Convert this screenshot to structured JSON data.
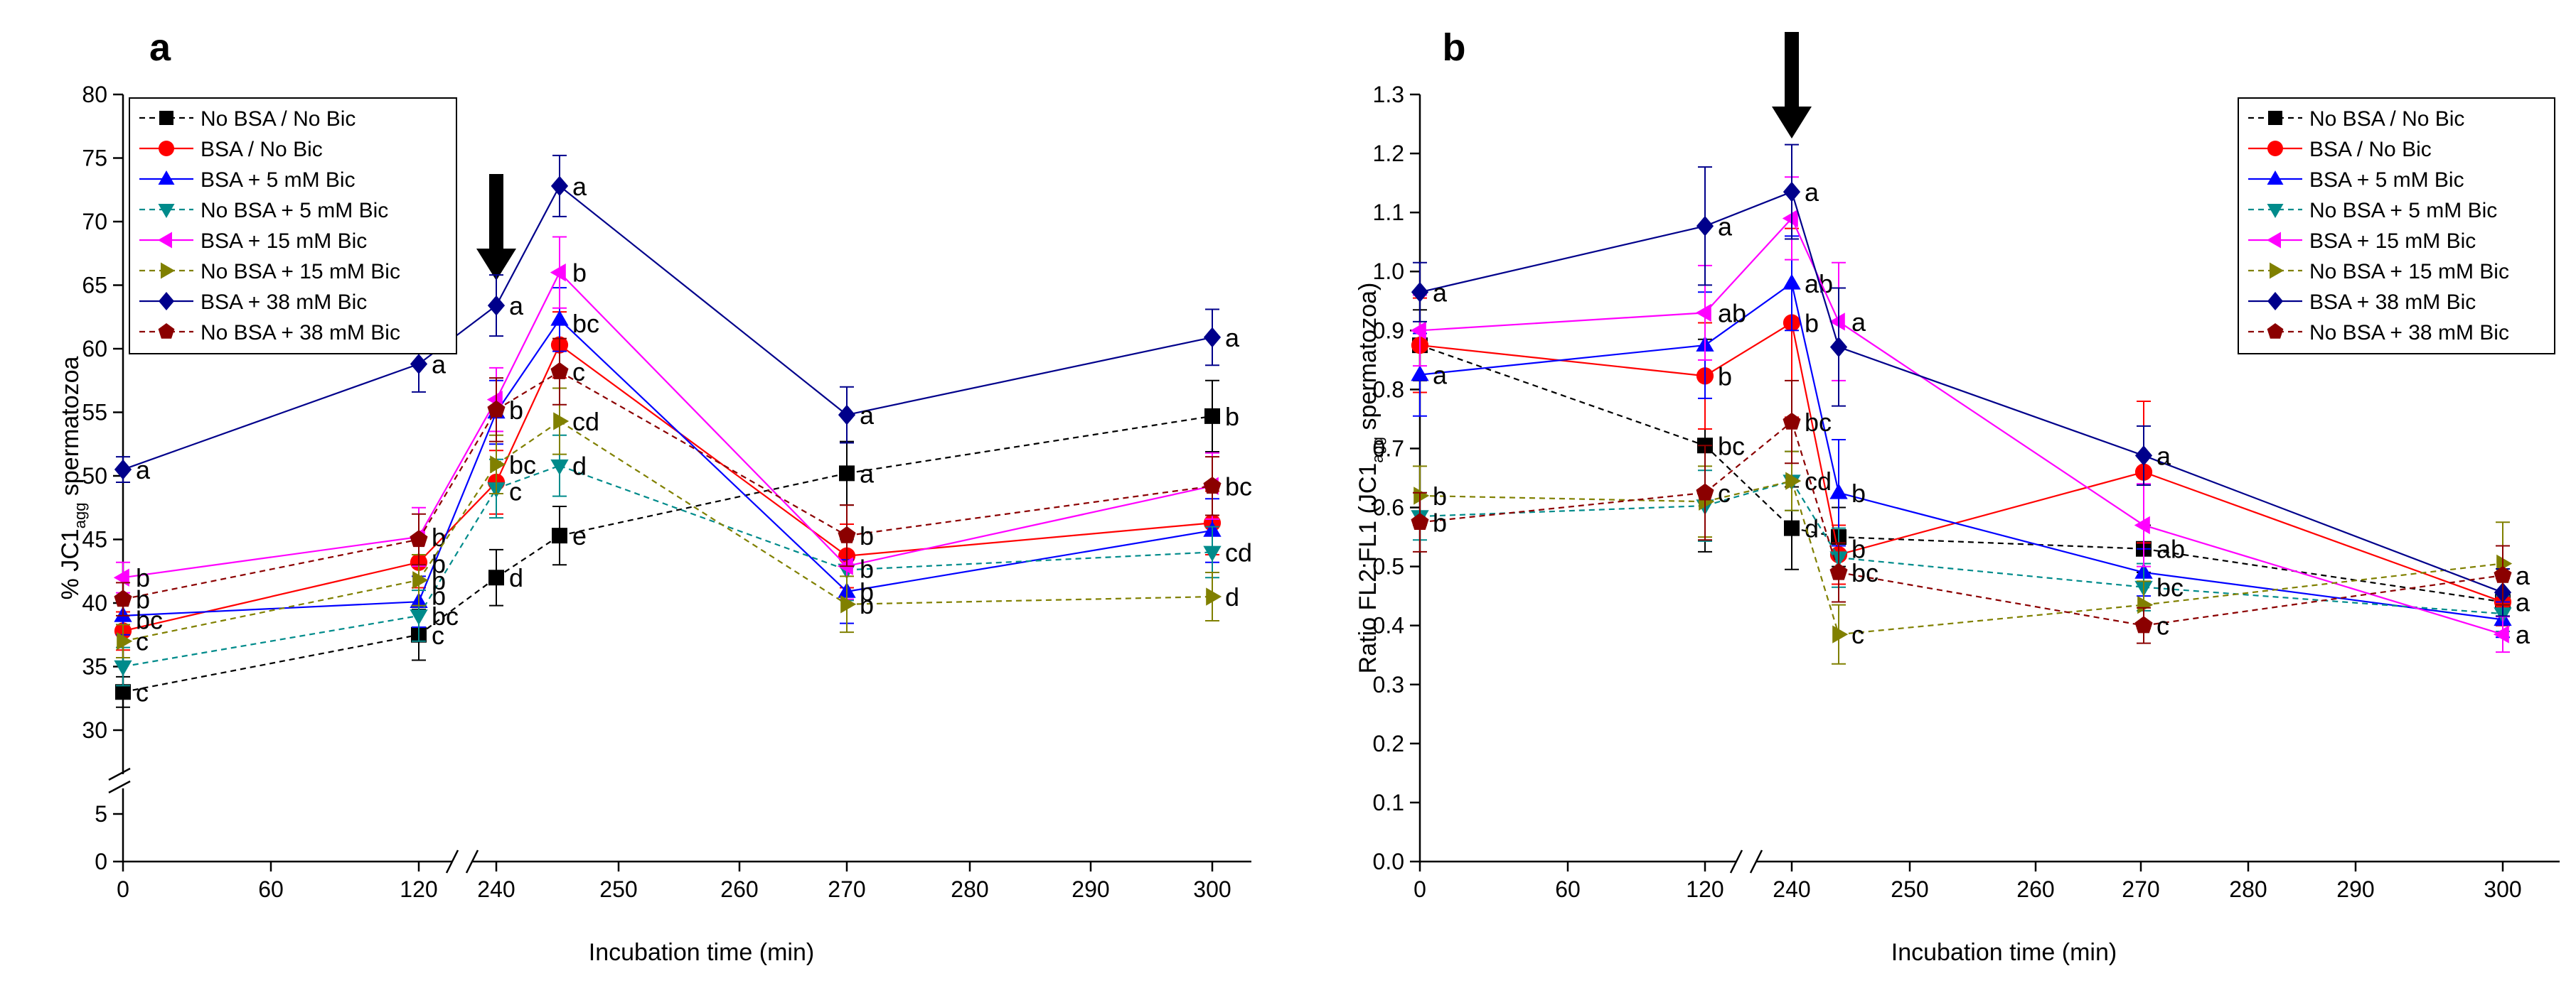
{
  "chart_data": [
    {
      "type": "line",
      "panel_label": "a",
      "xlabel": "Incubation time (min)",
      "ylabel_prefix": "% JC1",
      "ylabel_sub": "agg",
      "ylabel_suffix": " spermatozoa",
      "x_ticks": [
        "0",
        "60",
        "120",
        "240",
        "250",
        "260",
        "270",
        "280",
        "290",
        "300"
      ],
      "y_ticks": [
        "0",
        "5",
        "30",
        "35",
        "40",
        "45",
        "50",
        "55",
        "60",
        "65",
        "70",
        "75",
        "80"
      ],
      "x": [
        0,
        120,
        240,
        247,
        270,
        300
      ],
      "arrow_at": 240,
      "series": [
        {
          "name": "No BSA / No Bic",
          "color": "#000000",
          "marker": "square",
          "dash": true,
          "values": [
            33.0,
            37.5,
            42.0,
            45.3,
            50.2,
            54.7
          ],
          "errors": [
            1.2,
            2.0,
            2.2,
            2.3,
            2.5,
            2.8
          ],
          "letters": [
            "c",
            "c",
            "d",
            "e",
            "a",
            "b"
          ]
        },
        {
          "name": "BSA / No Bic",
          "color": "#ff0000",
          "marker": "circle",
          "dash": false,
          "values": [
            37.8,
            43.2,
            49.5,
            60.3,
            43.7,
            46.3
          ],
          "errors": [
            1.5,
            2.0,
            2.5,
            2.6,
            2.5,
            2.5
          ],
          "letters": [
            "",
            "",
            "",
            "",
            "",
            ""
          ]
        },
        {
          "name": "BSA + 5 mM Bic",
          "color": "#0000ff",
          "marker": "triangle-up",
          "dash": false,
          "values": [
            39.0,
            40.1,
            55.0,
            62.3,
            40.9,
            45.7
          ],
          "errors": [
            1.5,
            2.0,
            2.5,
            2.5,
            2.5,
            2.5
          ],
          "letters": [
            "",
            "",
            "",
            "",
            "b",
            ""
          ]
        },
        {
          "name": "No BSA + 5 mM Bic",
          "color": "#008b8b",
          "marker": "triangle-down",
          "dash": true,
          "values": [
            35.0,
            39.0,
            49.0,
            50.8,
            42.6,
            44.0
          ],
          "errors": [
            1.5,
            2.0,
            2.3,
            2.4,
            2.4,
            2.0
          ],
          "letters": [
            "",
            "",
            "",
            "d",
            "",
            "cd"
          ]
        },
        {
          "name": "BSA + 15 mM Bic",
          "color": "#ff00ff",
          "marker": "triangle-left",
          "dash": false,
          "values": [
            42.0,
            45.2,
            56.0,
            66.0,
            42.9,
            49.2
          ],
          "errors": [
            1.2,
            2.3,
            2.5,
            2.8,
            2.6,
            2.6
          ],
          "letters": [
            "b",
            "b",
            "",
            "b",
            "",
            ""
          ]
        },
        {
          "name": "No BSA + 15 mM Bic",
          "color": "#808000",
          "marker": "triangle-right",
          "dash": true,
          "values": [
            37.0,
            41.8,
            50.9,
            54.3,
            39.9,
            40.5
          ],
          "errors": [
            1.3,
            2.0,
            2.3,
            2.6,
            2.2,
            1.9
          ],
          "letters": [
            "c",
            "b",
            "bc",
            "cd",
            "b",
            "d"
          ]
        },
        {
          "name": "BSA + 38 mM Bic",
          "color": "#00008b",
          "marker": "diamond",
          "dash": false,
          "values": [
            50.5,
            58.8,
            63.4,
            72.8,
            54.8,
            60.9
          ],
          "errors": [
            1.0,
            2.2,
            2.4,
            2.4,
            2.2,
            2.2
          ],
          "letters": [
            "a",
            "a",
            "a",
            "a",
            "a",
            "a"
          ]
        },
        {
          "name": "No BSA  + 38 mM Bic",
          "color": "#8b0000",
          "marker": "pentagon",
          "dash": true,
          "values": [
            40.3,
            45.0,
            55.2,
            58.2,
            45.3,
            49.2
          ],
          "errors": [
            1.3,
            2.0,
            2.5,
            2.6,
            2.4,
            2.3
          ],
          "letters": [
            "b",
            "",
            "b",
            "c",
            "b",
            "bc"
          ]
        }
      ],
      "extra_labels": [
        {
          "text": "bc",
          "xi": 0,
          "v": 38.7
        },
        {
          "text": "b",
          "xi": 1,
          "v": 43.1
        },
        {
          "text": "b",
          "xi": 1,
          "v": 40.6
        },
        {
          "text": "bc",
          "xi": 1,
          "v": 39.0
        },
        {
          "text": "c",
          "xi": 2,
          "v": 48.8
        },
        {
          "text": "bc",
          "xi": 3,
          "v": 62.0
        },
        {
          "text": "b",
          "xi": 4,
          "v": 42.7
        }
      ]
    },
    {
      "type": "line",
      "panel_label": "b",
      "xlabel": "Incubation time (min)",
      "ylabel_prefix": "Ratio FL2:FL1 (JC1",
      "ylabel_sub": "agg",
      "ylabel_suffix": " spermatozoa)",
      "x_ticks": [
        "0",
        "60",
        "120",
        "240",
        "250",
        "260",
        "270",
        "280",
        "290",
        "300"
      ],
      "y_ticks": [
        "0.0",
        "0.1",
        "0.2",
        "0.3",
        "0.4",
        "0.5",
        "0.6",
        "0.7",
        "0.8",
        "0.9",
        "1.0",
        "1.1",
        "1.2",
        "1.3"
      ],
      "x": [
        0,
        120,
        240,
        247,
        270,
        300
      ],
      "arrow_at": 240,
      "series": [
        {
          "name": "No BSA / No Bic",
          "color": "#000000",
          "marker": "square",
          "dash": true,
          "values": [
            0.875,
            0.705,
            0.565,
            0.55,
            0.53,
            0.44
          ],
          "errors": [
            0.06,
            0.18,
            0.07,
            0.05,
            0.04,
            0.04
          ],
          "letters": [
            "",
            "bc",
            "d",
            "",
            "ab",
            "a"
          ]
        },
        {
          "name": "BSA / No Bic",
          "color": "#ff0000",
          "marker": "circle",
          "dash": false,
          "values": [
            0.875,
            0.823,
            0.913,
            0.52,
            0.66,
            0.44
          ],
          "errors": [
            0.08,
            0.09,
            0.16,
            0.05,
            0.12,
            0.04
          ],
          "letters": [
            "",
            "b",
            "b",
            "",
            "",
            ""
          ]
        },
        {
          "name": "BSA + 5 mM Bic",
          "color": "#0000ff",
          "marker": "triangle-up",
          "dash": false,
          "values": [
            0.825,
            0.875,
            0.98,
            0.625,
            0.49,
            0.41
          ],
          "errors": [
            0.07,
            0.09,
            0.08,
            0.09,
            0.04,
            0.03
          ],
          "letters": [
            "a",
            "",
            "ab",
            "b",
            "",
            ""
          ]
        },
        {
          "name": "No BSA + 5 mM Bic",
          "color": "#008b8b",
          "marker": "triangle-down",
          "dash": true,
          "values": [
            0.585,
            0.603,
            0.645,
            0.515,
            0.465,
            0.42
          ],
          "errors": [
            0.04,
            0.06,
            0.05,
            0.05,
            0.04,
            0.03
          ],
          "letters": [
            "",
            "",
            "",
            "",
            "bc",
            ""
          ]
        },
        {
          "name": "BSA + 15 mM Bic",
          "color": "#ff00ff",
          "marker": "triangle-left",
          "dash": false,
          "values": [
            0.9,
            0.93,
            1.09,
            0.915,
            0.57,
            0.385
          ],
          "errors": [
            0.06,
            0.08,
            0.07,
            0.1,
            0.07,
            0.03
          ],
          "letters": [
            "",
            "ab",
            "",
            "a",
            "",
            "a"
          ]
        },
        {
          "name": "No BSA + 15 mM Bic",
          "color": "#808000",
          "marker": "triangle-right",
          "dash": true,
          "values": [
            0.62,
            0.61,
            0.645,
            0.385,
            0.435,
            0.505
          ],
          "errors": [
            0.05,
            0.06,
            0.05,
            0.05,
            0.04,
            0.07
          ],
          "letters": [
            "b",
            "",
            "cd",
            "c",
            "",
            ""
          ]
        },
        {
          "name": "BSA + 38 mM Bic",
          "color": "#00008b",
          "marker": "diamond",
          "dash": false,
          "values": [
            0.965,
            1.077,
            1.135,
            0.872,
            0.688,
            0.456
          ],
          "errors": [
            0.05,
            0.1,
            0.08,
            0.1,
            0.05,
            0.04
          ],
          "letters": [
            "a",
            "a",
            "a",
            "",
            "a",
            ""
          ]
        },
        {
          "name": "No BSA  + 38 mM Bic",
          "color": "#8b0000",
          "marker": "pentagon",
          "dash": true,
          "values": [
            0.575,
            0.625,
            0.745,
            0.49,
            0.4,
            0.485
          ],
          "errors": [
            0.05,
            0.08,
            0.07,
            0.05,
            0.03,
            0.05
          ],
          "letters": [
            "b",
            "c",
            "bc",
            "bc",
            "c",
            "a"
          ]
        }
      ],
      "extra_labels": [
        {
          "text": "b",
          "xi": 3,
          "v": 0.53
        }
      ]
    }
  ]
}
